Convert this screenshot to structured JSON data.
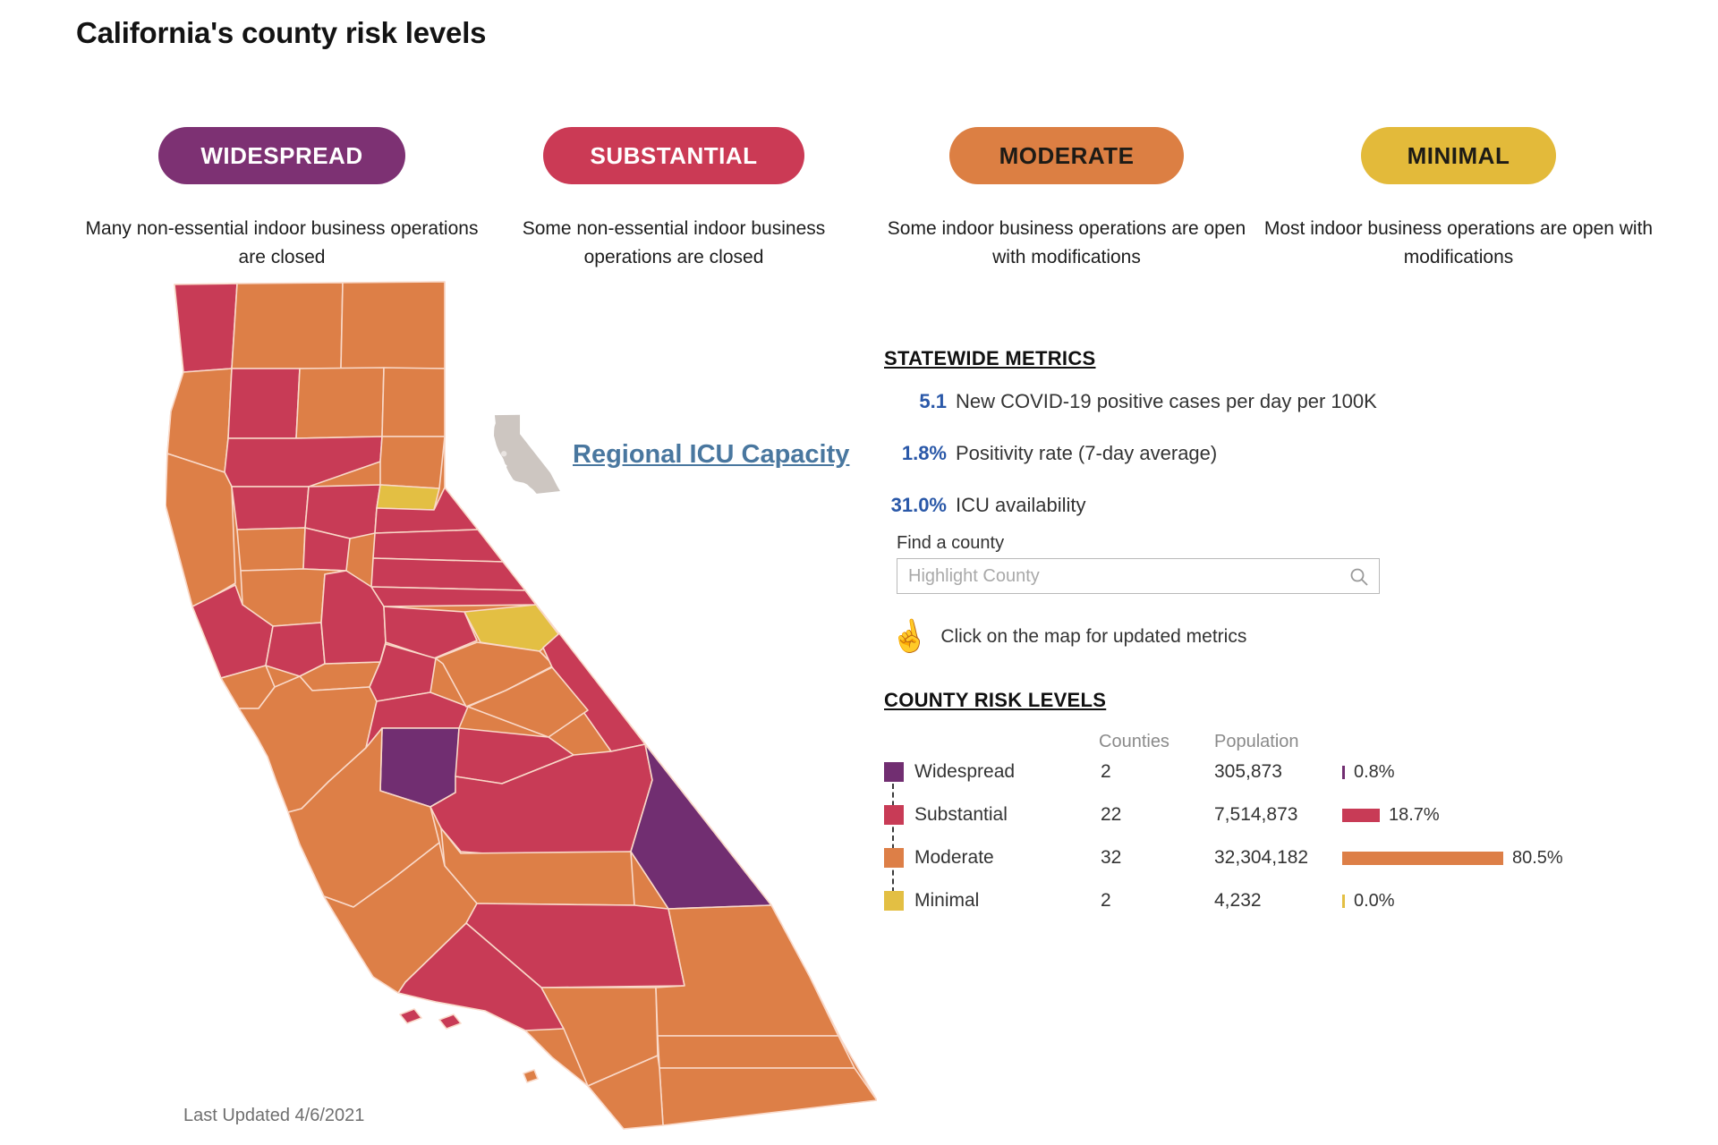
{
  "title": "California's county risk levels",
  "badges": [
    {
      "label": "WIDESPREAD",
      "description": "Many non-essential indoor business operations are closed",
      "color": "#7d3173",
      "text_color": "#ffffff"
    },
    {
      "label": "SUBSTANTIAL",
      "description": "Some non-essential indoor business operations are closed",
      "color": "#cb3a55",
      "text_color": "#ffffff"
    },
    {
      "label": "MODERATE",
      "description": "Some indoor business operations are open with modifications",
      "color": "#dc7f43",
      "text_color": "#1d1b16"
    },
    {
      "label": "MINIMAL",
      "description": "Most indoor business operations are open with modifications",
      "color": "#e3ba3a",
      "text_color": "#1d1b16"
    }
  ],
  "regional_icu_link": "Regional ICU Capacity",
  "statewide_metrics": {
    "heading": "STATEWIDE METRICS",
    "items": [
      {
        "value": "5.1",
        "label": "New COVID-19 positive cases per day per 100K"
      },
      {
        "value": "1.8%",
        "label": "Positivity rate (7-day average)"
      },
      {
        "value": "31.0%",
        "label": "ICU availability"
      }
    ]
  },
  "find_county": {
    "label": "Find a county",
    "placeholder": "Highlight County"
  },
  "map_hint": "Click on the map for updated metrics",
  "county_risk_levels": {
    "heading": "COUNTY RISK LEVELS",
    "columns": {
      "counties": "Counties",
      "population": "Population"
    },
    "rows": [
      {
        "label": "Widespread",
        "level": "widespread",
        "counties": "2",
        "population": "305,873",
        "pct": "0.8%",
        "pct_value": 0.8
      },
      {
        "label": "Substantial",
        "level": "substantial",
        "counties": "22",
        "population": "7,514,873",
        "pct": "18.7%",
        "pct_value": 18.7
      },
      {
        "label": "Moderate",
        "level": "moderate",
        "counties": "32",
        "population": "32,304,182",
        "pct": "80.5%",
        "pct_value": 80.5
      },
      {
        "label": "Minimal",
        "level": "minimal",
        "counties": "2",
        "population": "4,232",
        "pct": "0.0%",
        "pct_value": 0.0
      }
    ]
  },
  "map": {
    "last_updated": "Last Updated 4/6/2021",
    "level_colors": {
      "widespread": "#712e71",
      "substantial": "#c83b56",
      "moderate": "#dd7f47",
      "minimal": "#e3bf43"
    },
    "counties": {
      "del-norte": "substantial",
      "siskiyou": "moderate",
      "modoc": "moderate",
      "humboldt": "moderate",
      "trinity": "substantial",
      "shasta": "moderate",
      "lassen": "moderate",
      "tehama": "substantial",
      "mendocino": "moderate",
      "plumas": "moderate",
      "glenn": "substantial",
      "butte": "substantial",
      "sierra": "minimal",
      "nevada": "substantial",
      "placer": "substantial",
      "el-dorado": "substantial",
      "colusa": "moderate",
      "yuba": "substantial",
      "yolo": "moderate",
      "sonoma": "substantial",
      "napa": "substantial",
      "solano": "moderate",
      "marin": "moderate",
      "bay-area": "moderate",
      "sacramento": "substantial",
      "amador": "substantial",
      "alpine": "minimal",
      "calaveras": "substantial",
      "san-joaquin": "substantial",
      "stanislaus": "substantial",
      "tuolumne": "moderate",
      "mono": "substantial",
      "mariposa": "moderate",
      "merced": "widespread",
      "madera": "substantial",
      "fresno": "substantial",
      "inyo": "widespread",
      "kings-tulare": "moderate",
      "monterey": "moderate",
      "slo": "moderate",
      "kern": "substantial",
      "santa-barbara-ventura": "substantial",
      "channel-island-1": "substantial",
      "channel-island-2": "substantial",
      "catalina": "moderate",
      "los-angeles": "moderate",
      "san-bernardino": "moderate",
      "riverside": "moderate",
      "imperial": "moderate",
      "san-diego": "moderate"
    }
  }
}
